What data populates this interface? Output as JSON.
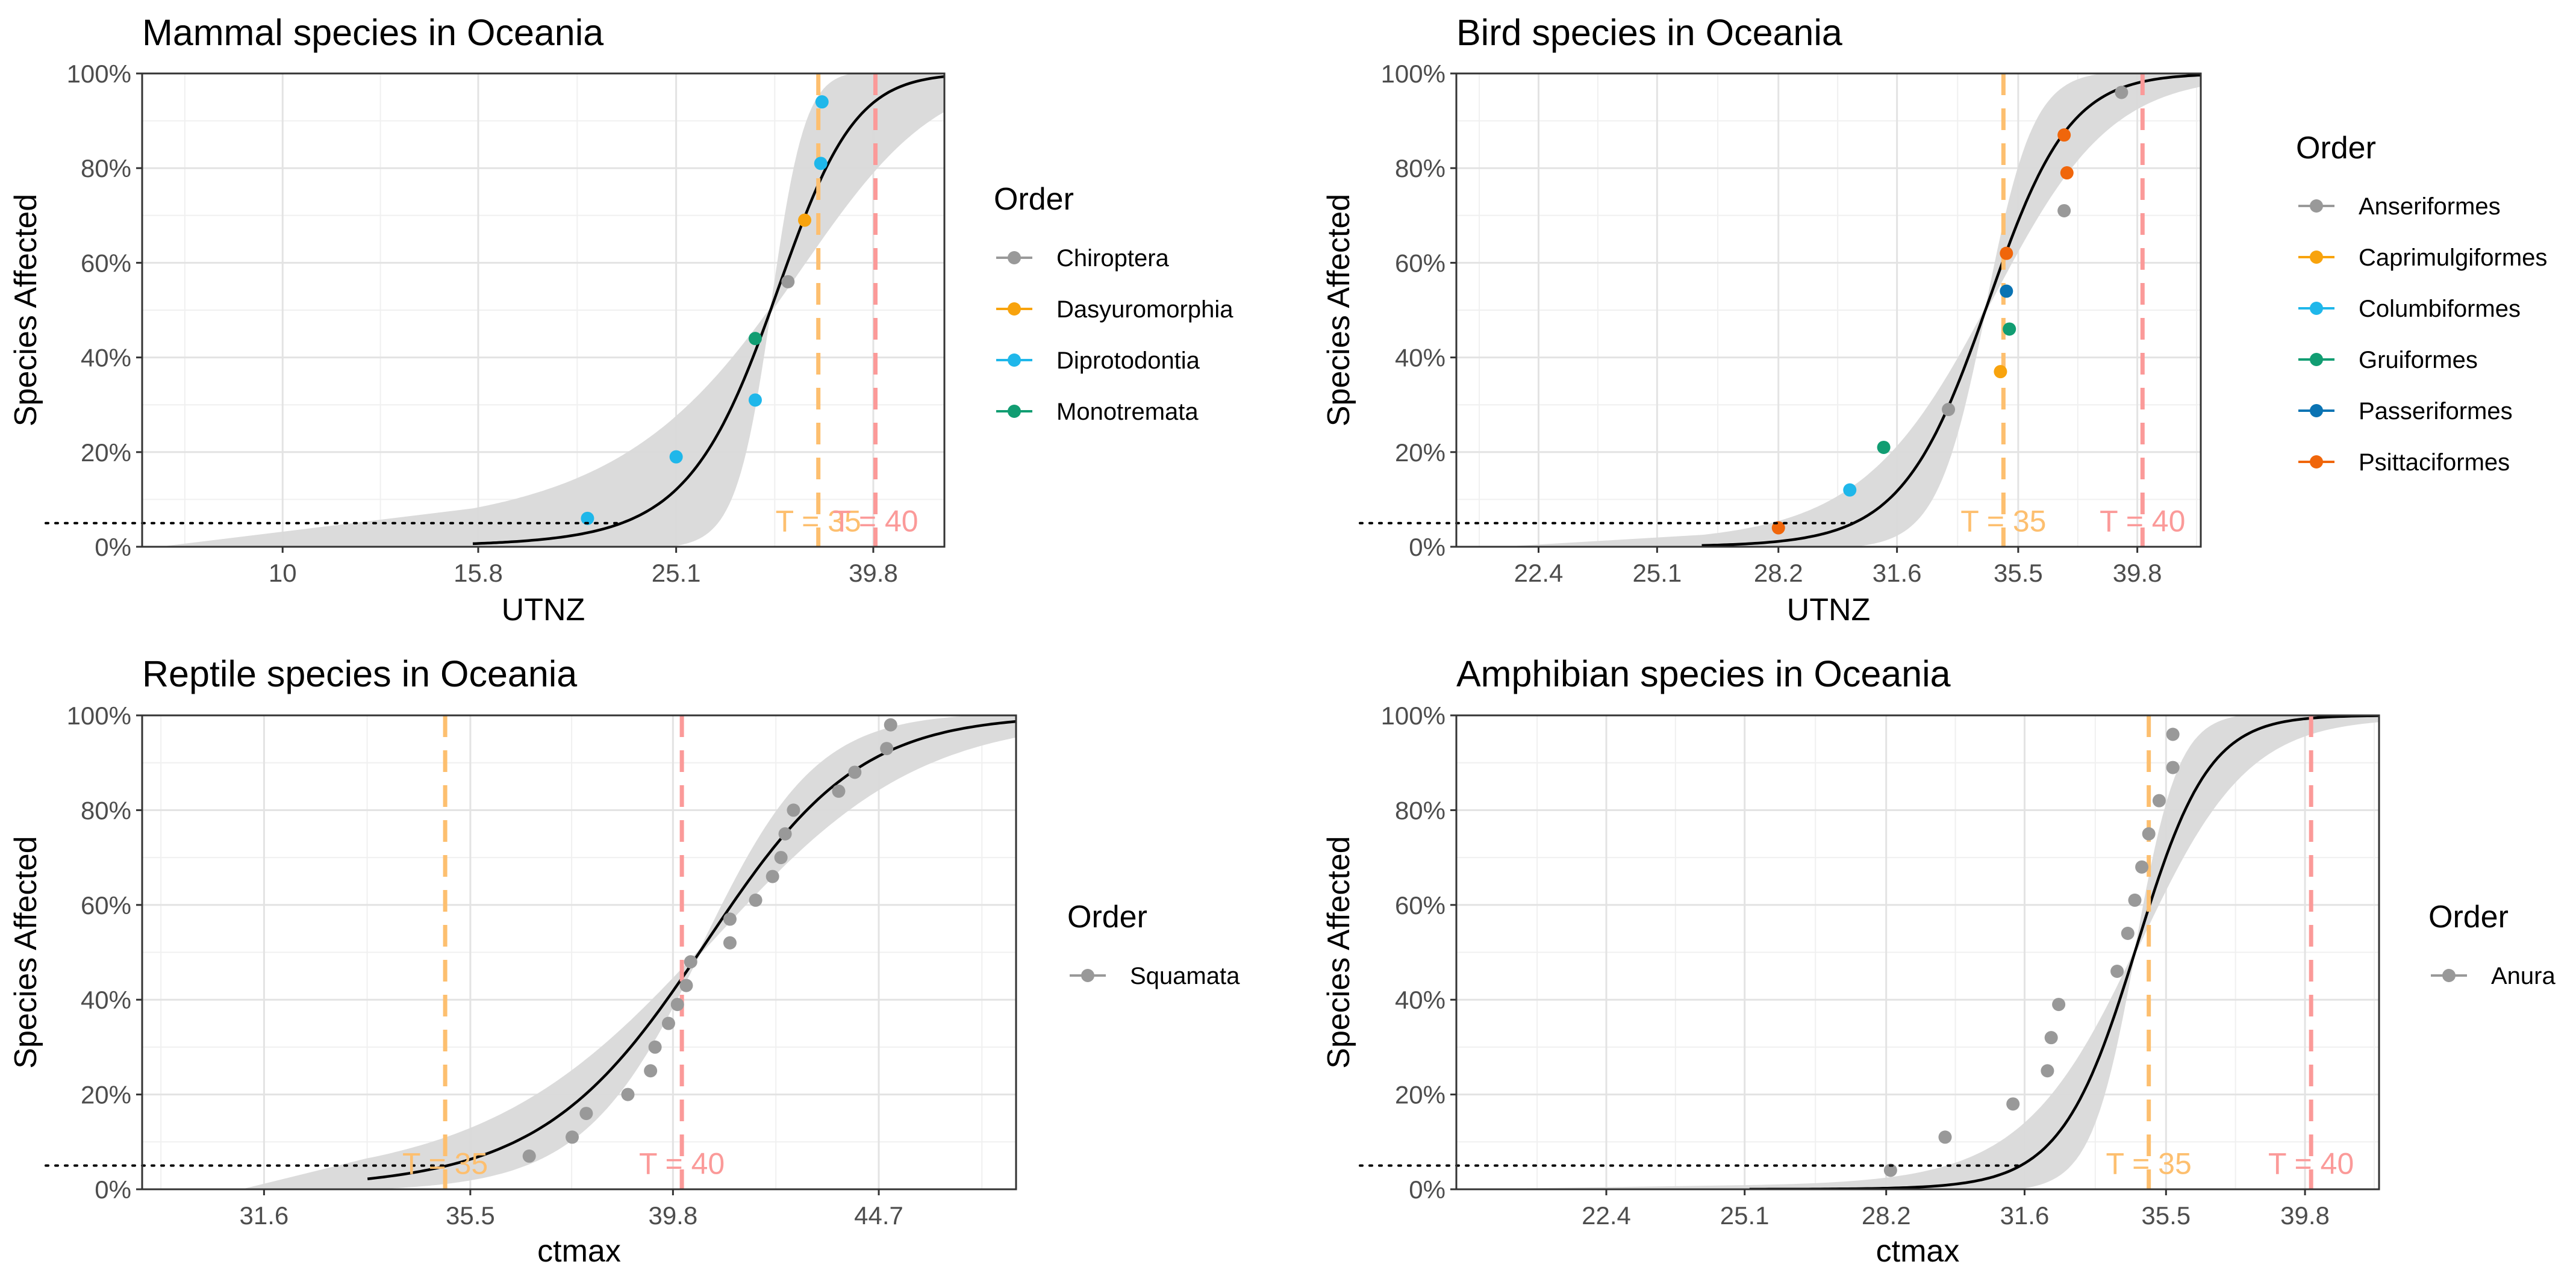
{
  "chart_data": [
    {
      "type": "scatter",
      "title": "Mammal species in Oceania",
      "xlabel": "UTNZ",
      "ylabel": "Species Affected",
      "x_scale": "log",
      "xlim": [
        7.2,
        47
      ],
      "x_ticks": [
        10,
        15.8,
        25.1,
        39.8
      ],
      "x_tick_labels": [
        "10",
        "15.8",
        "25.1",
        "39.8"
      ],
      "ylim": [
        0,
        100
      ],
      "y_ticks": [
        0,
        20,
        40,
        60,
        80,
        100
      ],
      "y_tick_labels": [
        "0%",
        "20%",
        "40%",
        "60%",
        "80%",
        "100%"
      ],
      "fit": {
        "x0": 31.3,
        "k": 0.32,
        "x_start": 15.6,
        "ci_low_k": 0.16,
        "ci_high_k": 0.78
      },
      "threshold_line_y": 5,
      "vlines": [
        {
          "x": 35,
          "label": "T = 35",
          "color": "#fdbf6f"
        },
        {
          "x": 40,
          "label": "T = 40",
          "color": "#fb9a99"
        }
      ],
      "legend_title": "Order",
      "series": [
        {
          "name": "Chiroptera",
          "color": "#999999",
          "points": [
            [
              32.6,
              56
            ]
          ]
        },
        {
          "name": "Dasyuromorphia",
          "color": "#f8a30d",
          "points": [
            [
              33.9,
              69
            ]
          ]
        },
        {
          "name": "Diprotodontia",
          "color": "#1fb7ea",
          "points": [
            [
              20.4,
              6
            ],
            [
              25.1,
              19
            ],
            [
              30.2,
              31
            ],
            [
              35.2,
              81
            ],
            [
              35.3,
              94
            ]
          ]
        },
        {
          "name": "Monotremata",
          "color": "#119d72",
          "points": [
            [
              30.2,
              44
            ]
          ]
        }
      ]
    },
    {
      "type": "scatter",
      "title": "Bird species in Oceania",
      "xlabel": "UTNZ",
      "ylabel": "Species Affected",
      "x_scale": "log",
      "xlim": [
        20.7,
        42.3
      ],
      "x_ticks": [
        22.4,
        25.1,
        28.2,
        31.6,
        35.5,
        39.8
      ],
      "x_tick_labels": [
        "22.4",
        "25.1",
        "28.2",
        "31.6",
        "35.5",
        "39.8"
      ],
      "ylim": [
        0,
        100
      ],
      "y_ticks": [
        0,
        20,
        40,
        60,
        80,
        100
      ],
      "y_tick_labels": [
        "0%",
        "20%",
        "40%",
        "60%",
        "80%",
        "100%"
      ],
      "fit": {
        "x0": 34.4,
        "k": 0.72,
        "x_start": 26.2,
        "ci_low_k": 0.48,
        "ci_high_k": 1.25
      },
      "threshold_line_y": 5,
      "vlines": [
        {
          "x": 35,
          "label": "T = 35",
          "color": "#fdbf6f"
        },
        {
          "x": 40,
          "label": "T = 40",
          "color": "#fb9a99"
        }
      ],
      "legend_title": "Order",
      "series": [
        {
          "name": "Anseriformes",
          "color": "#999999",
          "points": [
            [
              33.2,
              29
            ],
            [
              37.1,
              71
            ],
            [
              39.2,
              96
            ]
          ]
        },
        {
          "name": "Caprimulgiformes",
          "color": "#f8a30d",
          "points": [
            [
              34.9,
              37
            ]
          ]
        },
        {
          "name": "Columbiformes",
          "color": "#1fb7ea",
          "points": [
            [
              30.2,
              12
            ]
          ]
        },
        {
          "name": "Gruiformes",
          "color": "#119d72",
          "points": [
            [
              31.2,
              21
            ],
            [
              35.2,
              46
            ]
          ]
        },
        {
          "name": "Passeriformes",
          "color": "#0a73b3",
          "points": [
            [
              35.1,
              54
            ]
          ]
        },
        {
          "name": "Psittaciformes",
          "color": "#f0660b",
          "points": [
            [
              28.2,
              4
            ],
            [
              35.1,
              62
            ],
            [
              37.2,
              79
            ],
            [
              37.1,
              87
            ]
          ]
        }
      ]
    },
    {
      "type": "scatter",
      "title": "Reptile species in Oceania",
      "xlabel": "ctmax",
      "ylabel": "Species Affected",
      "x_scale": "log",
      "xlim": [
        29.5,
        48.3
      ],
      "x_ticks": [
        31.6,
        35.5,
        39.8,
        44.7
      ],
      "x_tick_labels": [
        "31.6",
        "35.5",
        "39.8",
        "44.7"
      ],
      "ylim": [
        0,
        100
      ],
      "y_ticks": [
        0,
        20,
        40,
        60,
        80,
        100
      ],
      "y_tick_labels": [
        "0%",
        "20%",
        "40%",
        "60%",
        "80%",
        "100%"
      ],
      "fit": {
        "x0": 40.4,
        "k": 0.55,
        "x_start": 33.5,
        "ci_low_k": 0.4,
        "ci_high_k": 0.75
      },
      "threshold_line_y": 5,
      "vlines": [
        {
          "x": 35,
          "label": "T = 35",
          "color": "#fdbf6f"
        },
        {
          "x": 40,
          "label": "T = 40",
          "color": "#fb9a99"
        }
      ],
      "legend_title": "Order",
      "series": [
        {
          "name": "Squamata",
          "color": "#999999",
          "points": [
            [
              36.7,
              7
            ],
            [
              37.6,
              11
            ],
            [
              37.9,
              16
            ],
            [
              38.8,
              20
            ],
            [
              39.3,
              25
            ],
            [
              39.4,
              30
            ],
            [
              39.7,
              35
            ],
            [
              39.9,
              39
            ],
            [
              40.1,
              43
            ],
            [
              40.2,
              48
            ],
            [
              41.1,
              52
            ],
            [
              41.1,
              57
            ],
            [
              41.7,
              61
            ],
            [
              42.1,
              66
            ],
            [
              42.3,
              70
            ],
            [
              42.4,
              75
            ],
            [
              42.6,
              80
            ],
            [
              43.7,
              84
            ],
            [
              44.1,
              88
            ],
            [
              44.9,
              93
            ],
            [
              45.0,
              98
            ]
          ]
        }
      ]
    },
    {
      "type": "scatter",
      "title": "Amphibian species in Oceania",
      "xlabel": "ctmax",
      "ylabel": "Species Affected",
      "x_scale": "log",
      "xlim": [
        19.8,
        42.3
      ],
      "x_ticks": [
        22.4,
        25.1,
        28.2,
        31.6,
        35.5,
        39.8
      ],
      "x_tick_labels": [
        "22.4",
        "25.1",
        "28.2",
        "31.6",
        "35.5",
        "39.8"
      ],
      "ylim": [
        0,
        100
      ],
      "y_ticks": [
        0,
        20,
        40,
        60,
        80,
        100
      ],
      "y_tick_labels": [
        "0%",
        "20%",
        "40%",
        "60%",
        "80%",
        "100%"
      ],
      "fit": {
        "x0": 34.6,
        "k": 0.95,
        "x_start": 25.2,
        "ci_low_k": 0.62,
        "ci_high_k": 1.6
      },
      "threshold_line_y": 5,
      "vlines": [
        {
          "x": 35,
          "label": "T = 35",
          "color": "#fdbf6f"
        },
        {
          "x": 40,
          "label": "T = 40",
          "color": "#fb9a99"
        }
      ],
      "legend_title": "Order",
      "series": [
        {
          "name": "Anura",
          "color": "#999999",
          "points": [
            [
              28.3,
              4
            ],
            [
              29.6,
              11
            ],
            [
              31.3,
              18
            ],
            [
              32.2,
              25
            ],
            [
              32.3,
              32
            ],
            [
              32.5,
              39
            ],
            [
              34.1,
              46
            ],
            [
              34.4,
              54
            ],
            [
              34.6,
              61
            ],
            [
              34.8,
              68
            ],
            [
              35.0,
              75
            ],
            [
              35.3,
              82
            ],
            [
              35.7,
              89
            ],
            [
              35.7,
              96
            ]
          ]
        }
      ]
    }
  ]
}
